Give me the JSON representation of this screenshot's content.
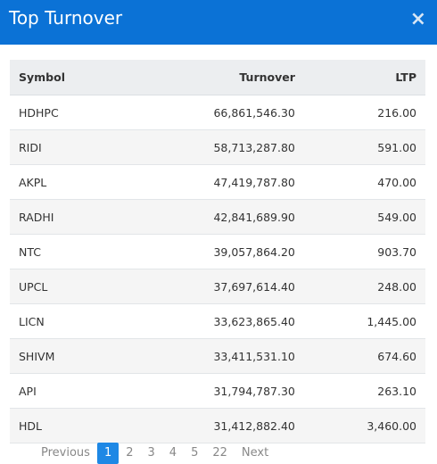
{
  "header": {
    "title": "Top Turnover",
    "close": "×"
  },
  "table": {
    "columns": [
      "Symbol",
      "Turnover",
      "LTP"
    ],
    "rows": [
      [
        "HDHPC",
        "66,861,546.30",
        "216.00"
      ],
      [
        "RIDI",
        "58,713,287.80",
        "591.00"
      ],
      [
        "AKPL",
        "47,419,787.80",
        "470.00"
      ],
      [
        "RADHI",
        "42,841,689.90",
        "549.00"
      ],
      [
        "NTC",
        "39,057,864.20",
        "903.70"
      ],
      [
        "UPCL",
        "37,697,614.40",
        "248.00"
      ],
      [
        "LICN",
        "33,623,865.40",
        "1,445.00"
      ],
      [
        "SHIVM",
        "33,411,531.10",
        "674.60"
      ],
      [
        "API",
        "31,794,787.30",
        "263.10"
      ],
      [
        "HDL",
        "31,412,882.40",
        "3,460.00"
      ]
    ]
  },
  "pagination": {
    "items": [
      "Previous",
      "1",
      "2",
      "3",
      "4",
      "5",
      "22",
      "Next"
    ],
    "active_index": 1
  }
}
